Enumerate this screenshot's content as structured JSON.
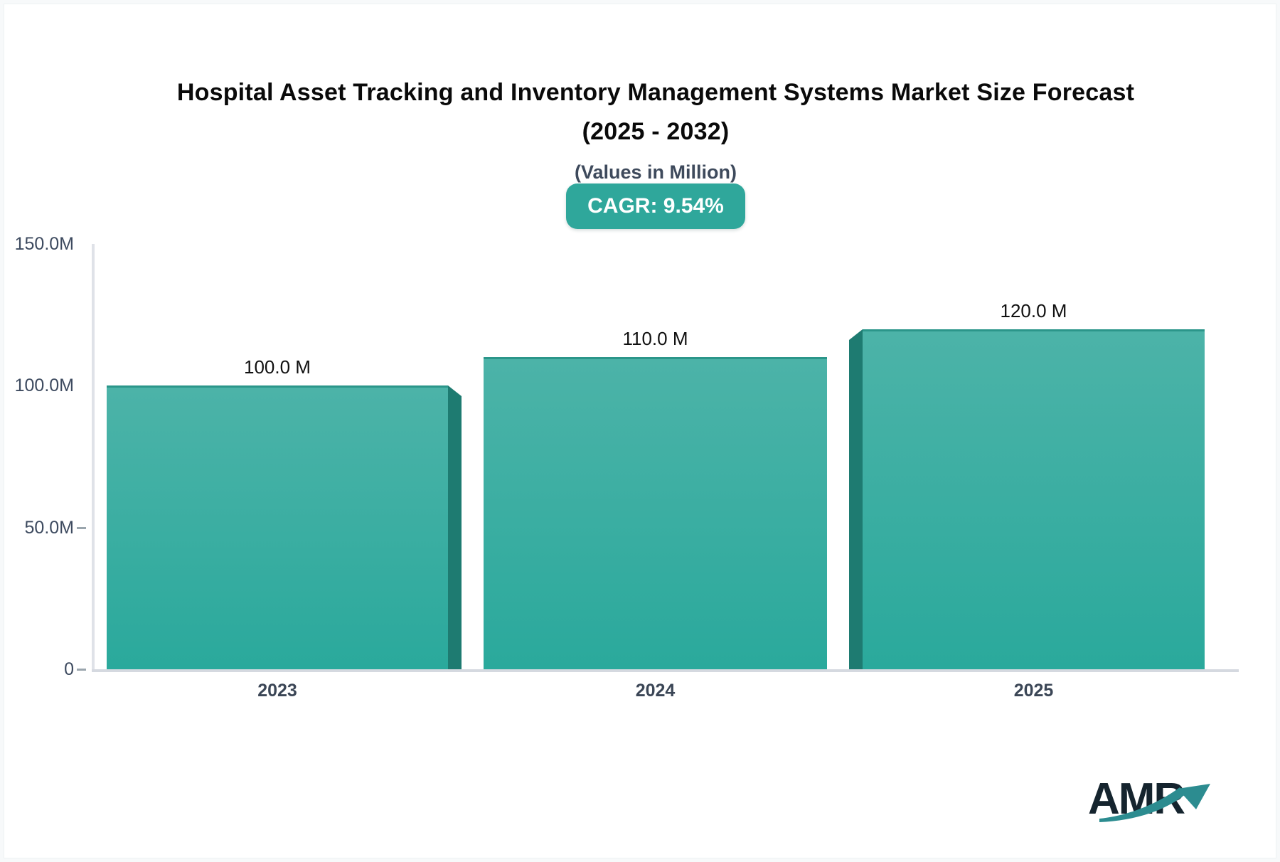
{
  "header": {
    "title_line1": "Hospital Asset Tracking and Inventory Management Systems Market Size Forecast",
    "title_line2": "(2025 - 2032)",
    "subtitle": "(Values in Million)",
    "cagr_badge": "CAGR: 9.54%"
  },
  "chart_data": {
    "type": "bar",
    "title": "Hospital Asset Tracking and Inventory Management Systems Market Size Forecast (2025 - 2032)",
    "subtitle": "(Values in Million)",
    "cagr_percent": "9.54%",
    "categories": [
      "2023",
      "2024",
      "2025"
    ],
    "values": [
      100.0,
      110.0,
      120.0
    ],
    "value_labels": [
      "100.0 M",
      "110.0 M",
      "120.0 M"
    ],
    "xlabel": "",
    "ylabel": "",
    "ylim": [
      0,
      150
    ],
    "y_ticks": [
      {
        "label": "150.0M",
        "value": 150,
        "dash": false
      },
      {
        "label": "100.0M",
        "value": 100,
        "dash": false
      },
      {
        "label": "50.0M",
        "value": 50,
        "dash": true
      },
      {
        "label": "0",
        "value": 0,
        "dash": true
      }
    ],
    "grid": false,
    "legend": false
  },
  "logo": {
    "text": "AMR"
  },
  "colors": {
    "bar_top": "#4CB3A8",
    "bar_bottom": "#2AA99C",
    "bar_side": "#1E7B71",
    "bar_stroke": "#2B968A",
    "badge": "#2FA79B",
    "logo_text": "#15242E",
    "logo_arrow": "#2C8C90"
  }
}
